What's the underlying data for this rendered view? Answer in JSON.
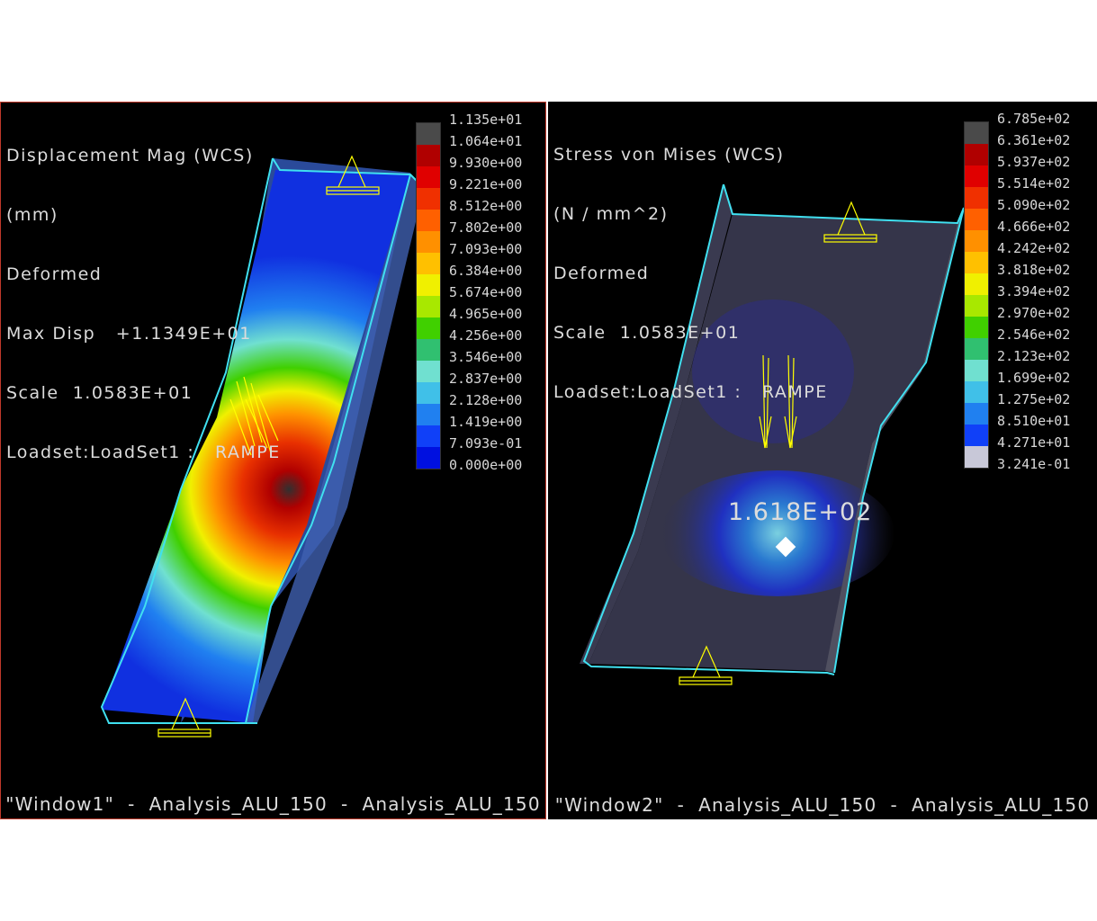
{
  "window1": {
    "info": [
      "Displacement Mag (WCS)",
      "(mm)",
      "Deformed",
      "Max Disp   +1.1349E+01",
      "Scale  1.0583E+01",
      "Loadset:LoadSet1 :   RAMPE"
    ],
    "legend": [
      "1.135e+01",
      "1.064e+01",
      "9.930e+00",
      "9.221e+00",
      "8.512e+00",
      "7.802e+00",
      "7.093e+00",
      "6.384e+00",
      "5.674e+00",
      "4.965e+00",
      "4.256e+00",
      "3.546e+00",
      "2.837e+00",
      "2.128e+00",
      "1.419e+00",
      "7.093e-01",
      "0.000e+00"
    ],
    "footer": "\"Window1\"  -  Analysis_ALU_150  -  Analysis_ALU_150"
  },
  "window2": {
    "info": [
      "Stress von Mises (WCS)",
      "(N / mm^2)",
      "Deformed",
      "Scale  1.0583E+01",
      "Loadset:LoadSet1 :   RAMPE"
    ],
    "legend": [
      "6.785e+02",
      "6.361e+02",
      "5.937e+02",
      "5.514e+02",
      "5.090e+02",
      "4.666e+02",
      "4.242e+02",
      "3.818e+02",
      "3.394e+02",
      "2.970e+02",
      "2.546e+02",
      "2.123e+02",
      "1.699e+02",
      "1.275e+02",
      "8.510e+01",
      "4.271e+01",
      "3.241e-01"
    ],
    "annotation": "1.618E+02",
    "footer": "\"Window2\"  -  Analysis_ALU_150  -  Analysis_ALU_150"
  },
  "colors": {
    "scale": [
      "#4a4a4a",
      "#b00000",
      "#e00000",
      "#f03000",
      "#ff6000",
      "#ff9000",
      "#ffc000",
      "#f0f000",
      "#a8e800",
      "#40d000",
      "#30c070",
      "#70e0d0",
      "#40c0e8",
      "#2080f0",
      "#1040f8",
      "#0010e0",
      "#1020b0"
    ],
    "scale2_last": "#c8c8d8",
    "highlight": "#ffff00",
    "edge": "#40e0f0"
  }
}
